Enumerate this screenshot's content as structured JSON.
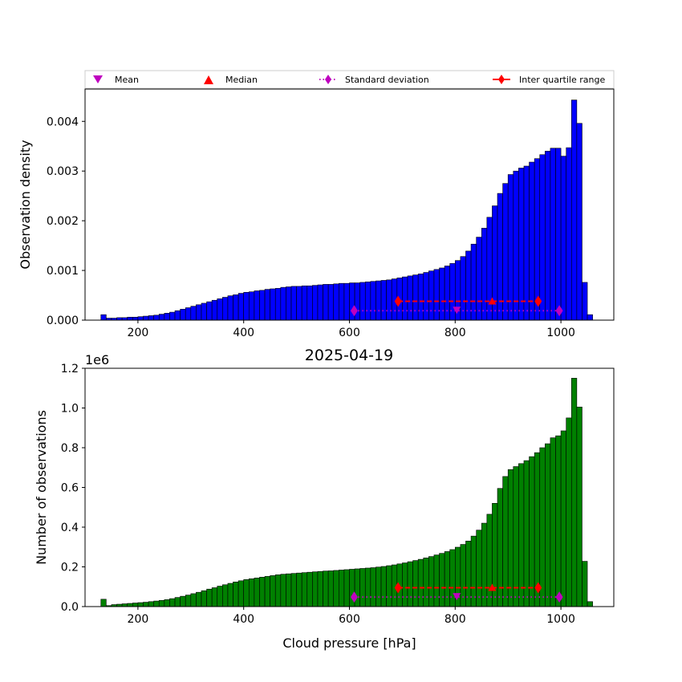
{
  "figure_title": "2025-04-19",
  "legend": {
    "mean": "Mean",
    "median": "Median",
    "std": "Standard deviation",
    "iqr": "Inter quartile range"
  },
  "colors": {
    "top_bars": "#0000ff",
    "bottom_bars": "#008000",
    "mean": "#bf00bf",
    "median": "#ff0000",
    "std": "#bf00bf",
    "iqr": "#ff0000"
  },
  "chart_data": [
    {
      "type": "bar",
      "subtype": "histogram",
      "xlabel": "",
      "ylabel": "Observation density",
      "xlim": [
        100,
        1100
      ],
      "ylim": [
        0,
        0.00465
      ],
      "xticks": [
        200,
        400,
        600,
        800,
        1000
      ],
      "yticks": [
        0,
        0.001,
        0.002,
        0.003,
        0.004
      ],
      "ytick_labels": [
        "0.000",
        "0.001",
        "0.002",
        "0.003",
        "0.004"
      ],
      "bin_start": 130,
      "bin_width": 10,
      "values": [
        0.00011,
        4e-05,
        4e-05,
        5e-05,
        5e-05,
        6e-05,
        6e-05,
        7e-05,
        8e-05,
        9e-05,
        0.0001,
        0.00012,
        0.00014,
        0.00016,
        0.00019,
        0.00022,
        0.00025,
        0.00028,
        0.00031,
        0.00034,
        0.00037,
        0.0004,
        0.00043,
        0.00046,
        0.00049,
        0.00051,
        0.00054,
        0.00056,
        0.00057,
        0.00059,
        0.0006,
        0.00062,
        0.00063,
        0.00064,
        0.00066,
        0.00067,
        0.00068,
        0.00068,
        0.00069,
        0.00069,
        0.0007,
        0.00071,
        0.00072,
        0.00072,
        0.00073,
        0.00074,
        0.00074,
        0.00075,
        0.00075,
        0.00076,
        0.00077,
        0.00078,
        0.00079,
        0.0008,
        0.00081,
        0.00083,
        0.00085,
        0.00087,
        0.00089,
        0.00091,
        0.00093,
        0.00096,
        0.00099,
        0.00102,
        0.00105,
        0.00109,
        0.00114,
        0.0012,
        0.00128,
        0.00139,
        0.00153,
        0.00167,
        0.00185,
        0.00207,
        0.0023,
        0.00255,
        0.00275,
        0.00293,
        0.003,
        0.00306,
        0.0031,
        0.00318,
        0.00325,
        0.00333,
        0.0034,
        0.00346,
        0.00346,
        0.0033,
        0.00347,
        0.00443,
        0.00396,
        0.00076,
        0.00011
      ],
      "stats": {
        "mean": 803,
        "median": 870,
        "std_low": 609,
        "std_high": 997,
        "iqr_low": 692,
        "iqr_high": 957,
        "std_y": 0.00019,
        "iqr_y": 0.00038
      }
    },
    {
      "type": "bar",
      "subtype": "histogram",
      "title": "2025-04-19",
      "xlabel": "Cloud pressure [hPa]",
      "ylabel": "Number of observations",
      "offset_label": "1e6",
      "xlim": [
        100,
        1100
      ],
      "ylim": [
        0,
        1.2
      ],
      "xticks": [
        200,
        400,
        600,
        800,
        1000
      ],
      "yticks": [
        0,
        0.2,
        0.4,
        0.6,
        0.8,
        1.0,
        1.2
      ],
      "ytick_labels": [
        "0.0",
        "0.2",
        "0.4",
        "0.6",
        "0.8",
        "1.0",
        "1.2"
      ],
      "bin_start": 130,
      "bin_width": 10,
      "values": [
        0.037,
        0.005,
        0.01,
        0.012,
        0.014,
        0.016,
        0.018,
        0.02,
        0.022,
        0.025,
        0.028,
        0.031,
        0.035,
        0.04,
        0.046,
        0.052,
        0.058,
        0.065,
        0.072,
        0.08,
        0.088,
        0.095,
        0.103,
        0.11,
        0.117,
        0.124,
        0.13,
        0.136,
        0.14,
        0.144,
        0.148,
        0.152,
        0.156,
        0.16,
        0.163,
        0.165,
        0.167,
        0.169,
        0.171,
        0.173,
        0.175,
        0.177,
        0.179,
        0.18,
        0.182,
        0.184,
        0.186,
        0.188,
        0.19,
        0.192,
        0.194,
        0.196,
        0.199,
        0.202,
        0.206,
        0.21,
        0.215,
        0.22,
        0.226,
        0.232,
        0.238,
        0.245,
        0.252,
        0.26,
        0.268,
        0.277,
        0.287,
        0.299,
        0.313,
        0.33,
        0.355,
        0.385,
        0.42,
        0.465,
        0.52,
        0.595,
        0.655,
        0.69,
        0.705,
        0.72,
        0.735,
        0.755,
        0.775,
        0.8,
        0.82,
        0.85,
        0.86,
        0.885,
        0.95,
        1.15,
        1.005,
        0.228,
        0.025
      ],
      "stats": {
        "mean": 803,
        "median": 870,
        "std_low": 609,
        "std_high": 997,
        "iqr_low": 692,
        "iqr_high": 957,
        "std_y": 0.048,
        "iqr_y": 0.095
      }
    }
  ]
}
